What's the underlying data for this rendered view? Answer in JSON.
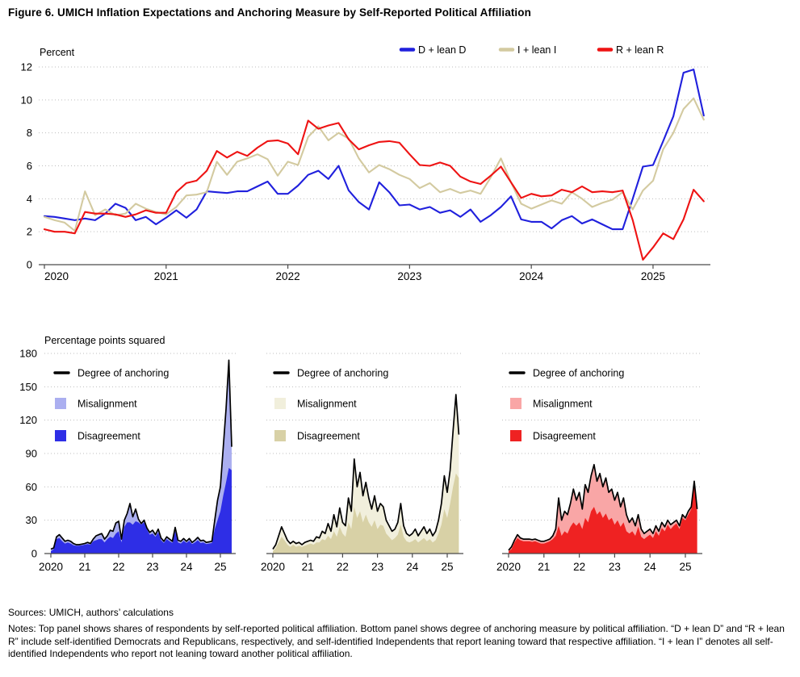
{
  "title": "Figure 6. UMICH Inflation Expectations and Anchoring Measure by Self-Reported Political Affiliation",
  "footer": {
    "sources": "Sources: UMICH, authors’ calculations",
    "notes": "Notes: Top panel shows shares of respondents by self-reported political affiliation. Bottom panel shows degree of anchoring measure by political affiliation. “D + lean D” and “R + lean R” include self-identified Democrats and Republicans, respectively, and self-identified Independents that report leaning toward that respective affiliation. “I + lean I” denotes all self-identified Independents who report not leaning toward another political affiliation.",
    "_comment": ""
  },
  "chart_data": [
    {
      "id": "top",
      "type": "line",
      "unit_label": "Percent",
      "frequency": "monthly",
      "x_start": "2020-01",
      "x_end": "2025-06",
      "x_tick_labels": [
        "2020",
        "2021",
        "2022",
        "2023",
        "2024",
        "2025"
      ],
      "y_ticks": [
        0,
        2,
        4,
        6,
        8,
        10,
        12
      ],
      "ylim": [
        0,
        12
      ],
      "grid": "dotted-horizontal",
      "legend_position": "top-right",
      "series": [
        {
          "name": "D + lean D",
          "color": "#2020dd",
          "values": [
            2.95,
            2.9,
            2.8,
            2.7,
            2.8,
            2.7,
            3.1,
            3.7,
            3.45,
            2.7,
            2.9,
            2.45,
            2.85,
            3.3,
            2.85,
            3.35,
            4.45,
            4.4,
            4.35,
            4.45,
            4.45,
            4.75,
            5.05,
            4.3,
            4.3,
            4.8,
            5.45,
            5.7,
            5.2,
            6.0,
            4.5,
            3.8,
            3.35,
            5.0,
            4.4,
            3.6,
            3.65,
            3.35,
            3.5,
            3.15,
            3.3,
            2.9,
            3.35,
            2.6,
            3.0,
            3.5,
            4.15,
            2.75,
            2.6,
            2.6,
            2.2,
            2.7,
            2.95,
            2.5,
            2.75,
            2.45,
            2.15,
            2.15,
            4.0,
            5.95,
            6.05,
            7.5,
            9.0,
            11.65,
            11.85,
            9.05
          ]
        },
        {
          "name": "I + lean I",
          "color": "#d3caa0",
          "values": [
            2.9,
            2.7,
            2.55,
            2.05,
            4.45,
            3.0,
            3.35,
            3.0,
            3.1,
            3.7,
            3.4,
            3.2,
            3.05,
            3.5,
            4.2,
            4.25,
            4.4,
            6.25,
            5.45,
            6.25,
            6.45,
            6.7,
            6.4,
            5.4,
            6.25,
            6.05,
            7.75,
            8.4,
            7.55,
            8.0,
            7.65,
            6.45,
            5.6,
            6.05,
            5.8,
            5.45,
            5.2,
            4.65,
            4.95,
            4.4,
            4.6,
            4.35,
            4.5,
            4.3,
            5.3,
            6.45,
            5.0,
            3.7,
            3.4,
            3.65,
            3.9,
            3.7,
            4.4,
            4.0,
            3.5,
            3.75,
            3.95,
            4.4,
            3.35,
            4.5,
            5.1,
            7.0,
            8.0,
            9.45,
            10.1,
            8.8
          ]
        },
        {
          "name": "R + lean R",
          "color": "#ee1313",
          "values": [
            2.15,
            2.0,
            2.0,
            1.9,
            3.2,
            3.1,
            3.1,
            3.05,
            2.9,
            3.05,
            3.3,
            3.15,
            3.15,
            4.4,
            4.95,
            5.1,
            5.7,
            6.9,
            6.5,
            6.85,
            6.6,
            7.1,
            7.5,
            7.55,
            7.35,
            6.7,
            8.75,
            8.25,
            8.45,
            8.6,
            7.6,
            7.0,
            7.25,
            7.45,
            7.5,
            7.4,
            6.7,
            6.05,
            6.0,
            6.2,
            6.0,
            5.35,
            5.05,
            4.9,
            5.4,
            5.95,
            5.0,
            4.05,
            4.3,
            4.15,
            4.2,
            4.55,
            4.4,
            4.75,
            4.4,
            4.45,
            4.4,
            4.5,
            2.7,
            0.3,
            1.05,
            1.9,
            1.55,
            2.75,
            4.55,
            3.85
          ]
        }
      ]
    },
    {
      "id": "anchoring-d",
      "type": "area",
      "group": "D + lean D",
      "unit_label": "Percentage points squared",
      "frequency": "monthly",
      "x_start": "2020-01",
      "x_end": "2025-05",
      "x_tick_labels": [
        "2020",
        "21",
        "22",
        "23",
        "24",
        "25"
      ],
      "y_ticks": [
        0,
        30,
        60,
        90,
        120,
        150,
        180
      ],
      "ylim": [
        0,
        180
      ],
      "show_y_labels": true,
      "legend": [
        "Degree of anchoring",
        "Misalignment",
        "Disagreement"
      ],
      "colors": {
        "line": "#000000",
        "misalignment": "#abaff0",
        "disagreement": "#2e2ee6"
      },
      "anchoring_total": [
        4,
        5,
        15,
        17,
        14,
        11,
        12,
        11,
        9,
        8,
        8,
        8.5,
        9,
        10,
        9,
        13,
        16,
        17,
        18,
        13,
        16,
        21,
        20,
        27.5,
        29,
        13,
        30,
        36,
        45,
        33,
        40,
        31,
        27,
        30,
        23,
        19,
        21,
        17,
        22,
        14,
        11,
        15,
        13,
        11,
        23.5,
        12,
        11,
        13.5,
        11,
        13.5,
        10,
        12,
        14.5,
        11.5,
        12,
        10,
        10.5,
        11,
        30,
        48,
        60,
        95,
        130,
        174,
        96
      ],
      "disagreement": [
        2,
        4,
        13,
        14,
        11,
        9,
        10,
        9,
        7.5,
        7,
        7,
        7.5,
        8,
        8.5,
        8,
        11,
        12,
        13,
        13,
        10,
        13,
        15,
        14,
        18,
        20,
        10,
        24,
        28,
        28,
        26,
        29,
        28,
        26,
        28,
        22,
        17,
        18,
        15,
        19,
        12,
        9.5,
        13,
        11,
        9.5,
        20,
        10,
        9,
        11.5,
        9.5,
        11.5,
        8.5,
        10,
        12,
        9.5,
        10,
        8.5,
        9,
        9.5,
        22,
        30,
        38,
        52,
        64,
        77,
        75
      ]
    },
    {
      "id": "anchoring-i",
      "type": "area",
      "group": "I + lean I",
      "frequency": "monthly",
      "x_start": "2020-01",
      "x_end": "2025-05",
      "x_tick_labels": [
        "2020",
        "21",
        "22",
        "23",
        "24",
        "25"
      ],
      "y_ticks": [
        0,
        30,
        60,
        90,
        120,
        150,
        180
      ],
      "ylim": [
        0,
        180
      ],
      "show_y_labels": false,
      "legend": [
        "Degree of anchoring",
        "Misalignment",
        "Disagreement"
      ],
      "colors": {
        "line": "#000000",
        "misalignment": "#f1efdc",
        "disagreement": "#d8d1a6"
      },
      "anchoring_total": [
        4,
        8,
        16,
        24,
        18,
        12,
        9,
        11,
        9,
        10,
        8,
        10,
        11,
        12,
        11,
        15,
        14,
        20,
        18,
        27,
        20,
        35,
        24,
        41,
        28,
        25,
        50,
        38,
        85,
        60,
        73,
        52,
        64,
        50,
        40,
        52,
        38,
        45,
        42,
        30,
        25,
        20,
        22,
        28,
        45,
        25,
        18,
        16,
        18,
        22,
        16,
        20,
        24,
        18,
        22,
        16,
        20,
        30,
        45,
        70,
        55,
        75,
        110,
        143,
        107
      ],
      "disagreement": [
        2,
        5,
        10,
        15,
        12,
        8,
        6,
        8,
        6,
        7,
        6,
        7,
        8,
        9,
        8,
        10,
        10,
        13,
        12,
        16,
        13,
        20,
        15,
        24,
        18,
        15,
        28,
        22,
        42,
        32,
        38,
        28,
        35,
        28,
        24,
        30,
        22,
        26,
        25,
        18,
        15,
        12,
        14,
        17,
        26,
        15,
        11,
        10,
        11,
        13,
        10,
        12,
        14,
        11,
        13,
        10,
        12,
        18,
        26,
        40,
        32,
        45,
        60,
        72,
        68
      ]
    },
    {
      "id": "anchoring-r",
      "type": "area",
      "group": "R + lean R",
      "frequency": "monthly",
      "x_start": "2020-01",
      "x_end": "2025-05",
      "x_tick_labels": [
        "2020",
        "21",
        "22",
        "23",
        "24",
        "25"
      ],
      "y_ticks": [
        0,
        30,
        60,
        90,
        120,
        150,
        180
      ],
      "ylim": [
        0,
        180
      ],
      "show_y_labels": false,
      "legend": [
        "Degree of anchoring",
        "Misalignment",
        "Disagreement"
      ],
      "colors": {
        "line": "#000000",
        "misalignment": "#f9a6a6",
        "disagreement": "#ef2222"
      },
      "anchoring_total": [
        3,
        6,
        12,
        17,
        14,
        13,
        13,
        13,
        12.5,
        13,
        12,
        11,
        11,
        12,
        13,
        16,
        22,
        50,
        30,
        38,
        35,
        45,
        58,
        48,
        55,
        40,
        62,
        55,
        70,
        80,
        65,
        72,
        60,
        68,
        55,
        58,
        48,
        55,
        42,
        50,
        35,
        28,
        32,
        25,
        35,
        22,
        18,
        20,
        22,
        18,
        25,
        20,
        28,
        24,
        30,
        26,
        28,
        30,
        25,
        35,
        32,
        38,
        42,
        65,
        40
      ],
      "disagreement": [
        2,
        4,
        10,
        14,
        12,
        11,
        11,
        11,
        10.5,
        11,
        10,
        9,
        9,
        10,
        11,
        13,
        16,
        25,
        16,
        20,
        18,
        24,
        28,
        25,
        28,
        22,
        32,
        28,
        38,
        42,
        35,
        38,
        32,
        36,
        30,
        32,
        26,
        30,
        24,
        28,
        20,
        18,
        20,
        16,
        24,
        15,
        13,
        15,
        17,
        14,
        20,
        16,
        23,
        20,
        26,
        22,
        25,
        27,
        22,
        32,
        30,
        35,
        40,
        62,
        38
      ]
    }
  ]
}
